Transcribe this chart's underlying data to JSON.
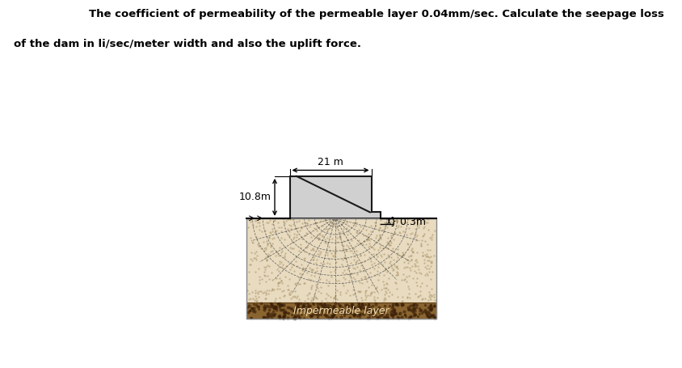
{
  "title_line1": "The coefficient of permeability of the permeable layer 0.04mm/sec. Calculate the seepage loss",
  "title_line2": "of the dam in li/sec/meter width and also the uplift force.",
  "dim_21m": "21 m",
  "dim_10_8m": "10.8m",
  "dim_0_3m": "} 0.3m",
  "impermeable_label": "Impermeable layer",
  "bg_color": "#ffffff",
  "soil_color": "#e8dbc0",
  "impermeable_color_top": "#a08050",
  "impermeable_color_bot": "#7a5c30",
  "dam_fill": "#d0d0d0",
  "dam_outline": "#1a1a1a",
  "flow_color": "#555555",
  "title_fontsize": 9.5,
  "label_fontsize": 9,
  "dim_fontsize": 9,
  "fig_width": 8.45,
  "fig_height": 4.55,
  "dpi": 100
}
